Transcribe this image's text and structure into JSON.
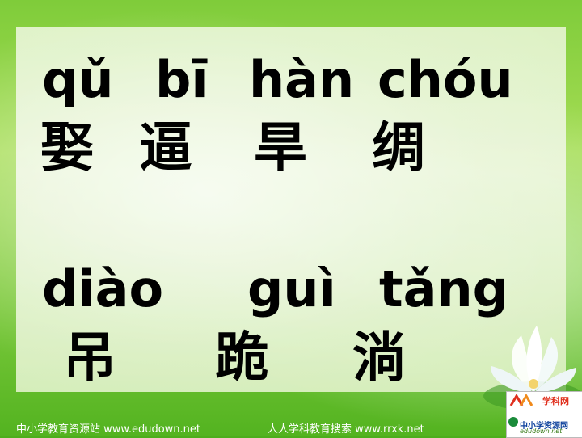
{
  "slide": {
    "row1": {
      "pinyin": [
        "qǔ",
        "bī",
        "hàn",
        "chóu"
      ],
      "hanzi": [
        "娶",
        "逼",
        "旱",
        "绸"
      ]
    },
    "row2": {
      "pinyin": [
        "diào",
        "guì",
        "tǎng"
      ],
      "hanzi": [
        "吊",
        "跪",
        "淌"
      ]
    }
  },
  "footer": {
    "left_text": "中小学教育资源站 www.edudown.net",
    "right_text": "人人学科教育搜索 www.rrxk.net"
  },
  "logo": {
    "top_text": "学科网",
    "mid_text": "中小学资源网",
    "sub_text": "edudown.net"
  }
}
